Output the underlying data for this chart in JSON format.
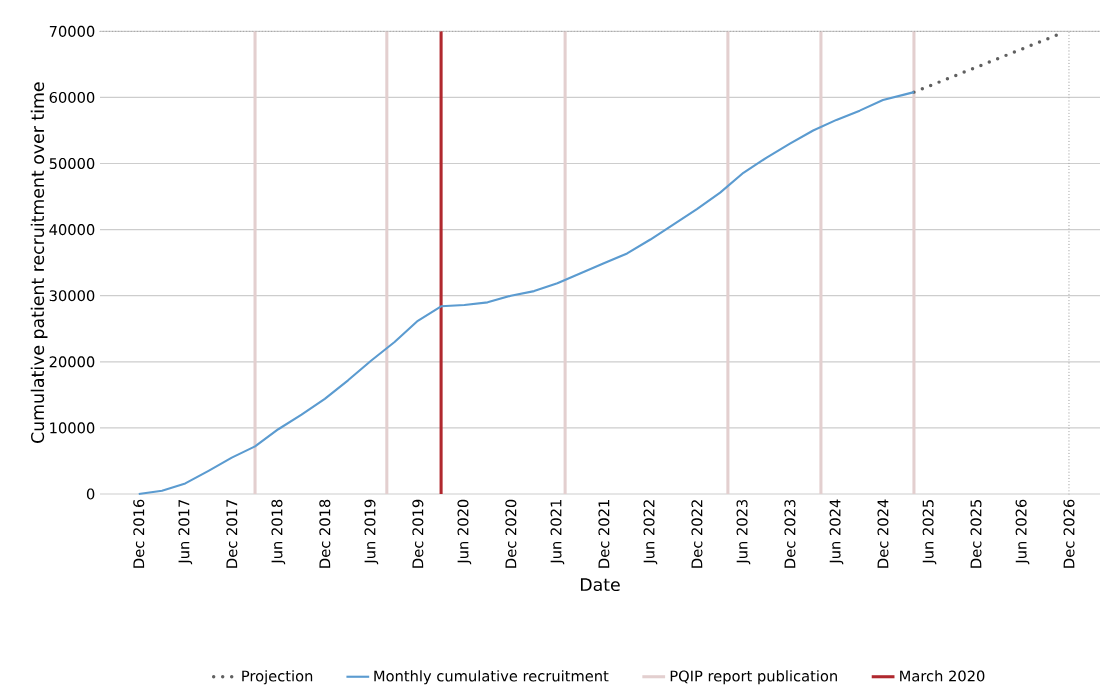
{
  "chart_data": {
    "type": "line",
    "xlabel": "Date",
    "ylabel": "Cumulative patient recruitment over time",
    "x": [
      "2016-12",
      "2017-03",
      "2017-06",
      "2017-09",
      "2017-12",
      "2018-03",
      "2018-06",
      "2018-09",
      "2018-12",
      "2019-03",
      "2019-06",
      "2019-09",
      "2019-12",
      "2020-03",
      "2020-06",
      "2020-09",
      "2020-12",
      "2021-03",
      "2021-06",
      "2021-09",
      "2021-12",
      "2022-03",
      "2022-06",
      "2022-09",
      "2022-12",
      "2023-03",
      "2023-06",
      "2023-09",
      "2023-12",
      "2024-03",
      "2024-06",
      "2024-09",
      "2024-12",
      "2025-03",
      "2025-04"
    ],
    "series": [
      {
        "name": "Projection",
        "color": "#606060",
        "line_style": "dotted",
        "x": [
          "2025-04",
          "2026-11"
        ],
        "values": [
          60800,
          69700
        ]
      },
      {
        "name": "Monthly cumulative recruitment",
        "color": "#5b9bd0",
        "line_style": "solid",
        "values": [
          0,
          500,
          1600,
          3500,
          5500,
          7200,
          9800,
          12000,
          14400,
          17200,
          20200,
          23000,
          26200,
          28400,
          28600,
          29000,
          30000,
          30700,
          31900,
          33400,
          34900,
          36400,
          38500,
          40800,
          43100,
          45600,
          48600,
          50900,
          53000,
          55000,
          56600,
          58000,
          59600,
          60500,
          60800
        ]
      }
    ],
    "ref_lines": [
      {
        "axis": "x",
        "value": "2018-03",
        "label": "PQIP report publication",
        "color": "#e3cfcf",
        "line_style": "solid"
      },
      {
        "axis": "x",
        "value": "2019-08",
        "color": "#e3cfcf",
        "line_style": "solid"
      },
      {
        "axis": "x",
        "value": "2020-03",
        "label": "March 2020",
        "color": "#b0282e",
        "line_style": "solid"
      },
      {
        "axis": "x",
        "value": "2021-07",
        "color": "#e3cfcf",
        "line_style": "solid"
      },
      {
        "axis": "x",
        "value": "2023-04",
        "color": "#e3cfcf",
        "line_style": "solid"
      },
      {
        "axis": "x",
        "value": "2024-04",
        "color": "#e3cfcf",
        "line_style": "solid"
      },
      {
        "axis": "x",
        "value": "2025-04",
        "color": "#e3cfcf",
        "line_style": "solid"
      },
      {
        "axis": "x",
        "value": "2026-12",
        "color": "#a0a0a0",
        "line_style": "dotted"
      },
      {
        "axis": "y",
        "value": 70000,
        "color": "#a0a0a0",
        "line_style": "dotted"
      }
    ],
    "xlim": [
      "2016-07",
      "2027-04"
    ],
    "ylim": [
      0,
      70000
    ],
    "xticks": [
      {
        "value": "2016-12",
        "label": "Dec 2016"
      },
      {
        "value": "2017-06",
        "label": "Jun 2017"
      },
      {
        "value": "2017-12",
        "label": "Dec 2017"
      },
      {
        "value": "2018-06",
        "label": "Jun 2018"
      },
      {
        "value": "2018-12",
        "label": "Dec 2018"
      },
      {
        "value": "2019-06",
        "label": "Jun 2019"
      },
      {
        "value": "2019-12",
        "label": "Dec 2019"
      },
      {
        "value": "2020-06",
        "label": "Jun 2020"
      },
      {
        "value": "2020-12",
        "label": "Dec 2020"
      },
      {
        "value": "2021-06",
        "label": "Jun 2021"
      },
      {
        "value": "2021-12",
        "label": "Dec 2021"
      },
      {
        "value": "2022-06",
        "label": "Jun 2022"
      },
      {
        "value": "2022-12",
        "label": "Dec 2022"
      },
      {
        "value": "2023-06",
        "label": "Jun 2023"
      },
      {
        "value": "2023-12",
        "label": "Dec 2023"
      },
      {
        "value": "2024-06",
        "label": "Jun 2024"
      },
      {
        "value": "2024-12",
        "label": "Dec 2024"
      },
      {
        "value": "2025-06",
        "label": "Jun 2025"
      },
      {
        "value": "2025-12",
        "label": "Dec 2025"
      },
      {
        "value": "2026-06",
        "label": "Jun 2026"
      },
      {
        "value": "2026-12",
        "label": "Dec 2026"
      }
    ],
    "yticks": [
      0,
      10000,
      20000,
      30000,
      40000,
      50000,
      60000,
      70000
    ],
    "grid": "y",
    "legend": "bottom",
    "marker": "none"
  }
}
